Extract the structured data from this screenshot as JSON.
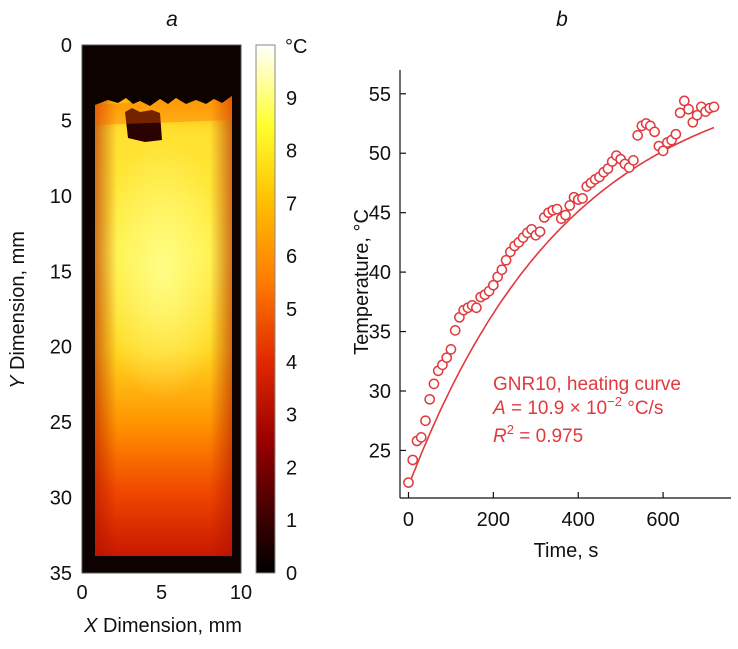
{
  "colors": {
    "series": "#e03a3e",
    "axis": "#111111",
    "heatmap_stops": [
      "#000000",
      "#3a0000",
      "#b00000",
      "#e83000",
      "#ff8000",
      "#ffd000",
      "#ffff40",
      "#ffffff"
    ]
  },
  "chart_data": [
    {
      "panel_label": "a",
      "type": "heatmap",
      "title": "",
      "xlabel_var": "X",
      "xlabel_rest": " Dimension, mm",
      "ylabel_var": "Y",
      "ylabel_rest": " Dimension, mm",
      "xlim": [
        0,
        10
      ],
      "ylim": [
        0,
        35
      ],
      "y_inverted": true,
      "x_ticks": [
        "0",
        "5",
        "10"
      ],
      "y_ticks": [
        "0",
        "5",
        "10",
        "15",
        "20",
        "25",
        "30",
        "35"
      ],
      "colorbar": {
        "unit": "°C",
        "range": [
          0,
          10
        ],
        "ticks": [
          "0",
          "1",
          "2",
          "3",
          "4",
          "5",
          "6",
          "7",
          "8",
          "9"
        ]
      },
      "description_values": {
        "sample_top_mm": 4,
        "sample_bottom_mm": 34.5,
        "hottest_region_y_mm": [
          7,
          22
        ],
        "hottest_value_c": 8.5
      }
    },
    {
      "panel_label": "b",
      "type": "scatter",
      "title": "",
      "xlabel": "Time, s",
      "ylabel": "Temperature, °C",
      "xlim": [
        -20,
        760
      ],
      "ylim": [
        21,
        57
      ],
      "x_ticks": [
        "0",
        "200",
        "400",
        "600"
      ],
      "x_tick_values": [
        0,
        200,
        400,
        600
      ],
      "y_ticks": [
        "25",
        "30",
        "35",
        "40",
        "45",
        "50",
        "55"
      ],
      "y_tick_values": [
        25,
        30,
        35,
        40,
        45,
        50,
        55
      ],
      "series": [
        {
          "name": "GNR10, heating curve",
          "marker": "open-circle",
          "x": [
            0,
            10,
            20,
            30,
            40,
            50,
            60,
            70,
            80,
            90,
            100,
            110,
            120,
            130,
            140,
            150,
            160,
            170,
            180,
            190,
            200,
            210,
            220,
            230,
            240,
            250,
            260,
            270,
            280,
            290,
            300,
            310,
            320,
            330,
            340,
            350,
            360,
            370,
            380,
            390,
            400,
            410,
            420,
            430,
            440,
            450,
            460,
            470,
            480,
            490,
            500,
            510,
            520,
            530,
            540,
            550,
            560,
            570,
            580,
            590,
            600,
            610,
            620,
            630,
            640,
            650,
            660,
            670,
            680,
            690,
            700,
            710,
            720
          ],
          "y": [
            22.3,
            24.2,
            25.8,
            26.1,
            27.5,
            29.3,
            30.6,
            31.7,
            32.2,
            32.8,
            33.5,
            35.1,
            36.2,
            36.8,
            37.0,
            37.2,
            37.0,
            37.9,
            38.1,
            38.4,
            38.9,
            39.6,
            40.2,
            41.0,
            41.7,
            42.2,
            42.5,
            42.9,
            43.3,
            43.6,
            43.1,
            43.4,
            44.6,
            45.0,
            45.2,
            45.3,
            44.5,
            44.8,
            45.6,
            46.3,
            46.1,
            46.2,
            47.2,
            47.5,
            47.8,
            48.0,
            48.4,
            48.7,
            49.3,
            49.8,
            49.5,
            49.1,
            48.8,
            49.4,
            51.5,
            52.3,
            52.5,
            52.3,
            51.8,
            50.6,
            50.2,
            50.9,
            51.1,
            51.6,
            53.4,
            54.4,
            53.7,
            52.6,
            53.2,
            53.9,
            53.5,
            53.8,
            53.9
          ]
        },
        {
          "name": "fit",
          "style": "line",
          "model": "T = T0 + dT * (1 - exp(-t / tau))",
          "params": {
            "T0": 22.0,
            "dT": 35.5,
            "tau": 380
          },
          "range": [
            0,
            720
          ]
        }
      ],
      "annotations": {
        "line1": "GNR10, heating curve",
        "line2_var": "A",
        "line2_rest": " = 10.9 × 10",
        "line2_exp": "−2",
        "line2_unit": " °C/s",
        "line3_var": "R",
        "line3_exp": "2",
        "line3_rest": " = 0.975"
      }
    }
  ]
}
